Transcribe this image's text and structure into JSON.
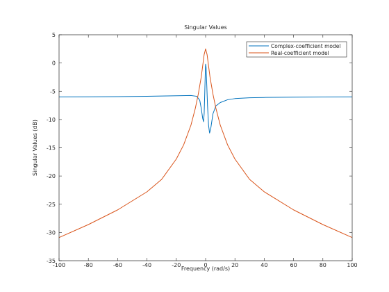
{
  "chart_data": {
    "type": "line",
    "title": "Singular Values",
    "xlabel": "Frequency (rad/s)",
    "ylabel": "Singular Values (dB)",
    "xlim": [
      -100,
      100
    ],
    "ylim": [
      -35,
      5
    ],
    "xticks": [
      -100,
      -80,
      -60,
      -40,
      -20,
      0,
      20,
      40,
      60,
      80,
      100
    ],
    "yticks": [
      -35,
      -30,
      -25,
      -20,
      -15,
      -10,
      -5,
      0,
      5
    ],
    "grid": false,
    "legend_position": "top-right",
    "series": [
      {
        "name": "Complex-coefficient model",
        "color": "#0072bd",
        "points": [
          [
            -100,
            -6.0
          ],
          [
            -80,
            -5.98
          ],
          [
            -60,
            -5.95
          ],
          [
            -40,
            -5.9
          ],
          [
            -20,
            -5.8
          ],
          [
            -10,
            -5.75
          ],
          [
            -6,
            -5.9
          ],
          [
            -4,
            -6.6
          ],
          [
            -3,
            -8.0
          ],
          [
            -2,
            -9.8
          ],
          [
            -1.4,
            -10.4
          ],
          [
            -1,
            -9.0
          ],
          [
            -0.6,
            -5.5
          ],
          [
            -0.2,
            -1.5
          ],
          [
            0,
            -0.2
          ],
          [
            0.3,
            -0.7
          ],
          [
            0.8,
            -4.0
          ],
          [
            1.3,
            -7.5
          ],
          [
            2,
            -11.0
          ],
          [
            2.7,
            -12.4
          ],
          [
            3.5,
            -11.6
          ],
          [
            5,
            -9.0
          ],
          [
            7,
            -7.6
          ],
          [
            10,
            -7.0
          ],
          [
            15,
            -6.5
          ],
          [
            20,
            -6.3
          ],
          [
            30,
            -6.15
          ],
          [
            40,
            -6.1
          ],
          [
            60,
            -6.05
          ],
          [
            80,
            -6.02
          ],
          [
            100,
            -6.0
          ]
        ]
      },
      {
        "name": "Real-coefficient model",
        "color": "#d95319",
        "points": [
          [
            -100,
            -30.9
          ],
          [
            -80,
            -28.6
          ],
          [
            -60,
            -26.0
          ],
          [
            -40,
            -22.8
          ],
          [
            -30,
            -20.6
          ],
          [
            -20,
            -17.0
          ],
          [
            -15,
            -14.5
          ],
          [
            -10,
            -11.0
          ],
          [
            -7,
            -8.0
          ],
          [
            -5,
            -5.5
          ],
          [
            -3,
            -2.5
          ],
          [
            -2,
            -0.5
          ],
          [
            -1,
            1.5
          ],
          [
            0,
            2.5
          ],
          [
            1,
            1.5
          ],
          [
            2,
            -0.5
          ],
          [
            3,
            -2.5
          ],
          [
            5,
            -5.5
          ],
          [
            7,
            -8.0
          ],
          [
            10,
            -11.0
          ],
          [
            15,
            -14.5
          ],
          [
            20,
            -17.0
          ],
          [
            30,
            -20.6
          ],
          [
            40,
            -22.8
          ],
          [
            60,
            -26.0
          ],
          [
            80,
            -28.6
          ],
          [
            100,
            -30.9
          ]
        ]
      }
    ]
  }
}
